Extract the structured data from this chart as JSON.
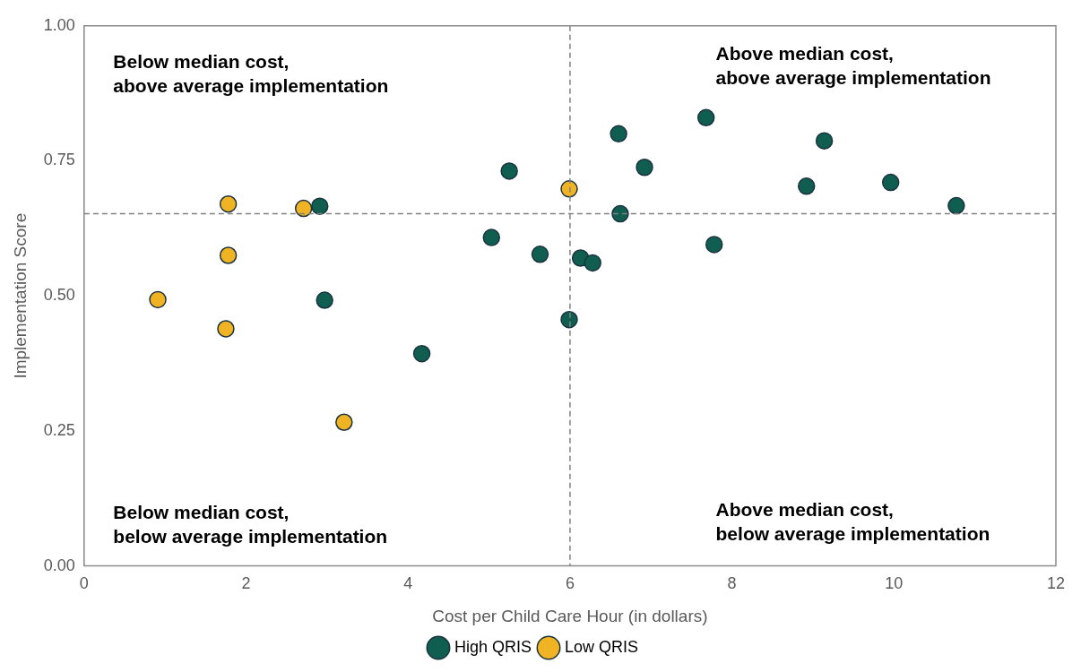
{
  "chart_data": {
    "type": "scatter",
    "xlabel": "Cost per Child Care Hour (in dollars)",
    "ylabel": "Implementation Score",
    "xlim": [
      0,
      12
    ],
    "xticks": [
      0,
      2,
      4,
      6,
      8,
      10,
      12
    ],
    "ylim": [
      0,
      1
    ],
    "yticks": [
      {
        "value": 0,
        "label": "0.00"
      },
      0.25,
      {
        "value": 0.5,
        "label": "0.50"
      },
      0.75,
      {
        "value": 1,
        "label": "1.00"
      }
    ],
    "grid": false,
    "legend": "bottom",
    "marker": "circle",
    "series": [
      {
        "name": "High QRIS",
        "color": "#0f5e4f",
        "x": [
          2.91,
          2.97,
          4.17,
          5.03,
          5.25,
          5.63,
          5.99,
          6.13,
          6.28,
          6.6,
          6.62,
          6.92,
          7.68,
          7.78,
          8.92,
          9.14,
          9.96,
          10.77
        ],
        "values": [
          0.666,
          0.492,
          0.393,
          0.608,
          0.731,
          0.577,
          0.456,
          0.57,
          0.561,
          0.8,
          0.652,
          0.738,
          0.83,
          0.595,
          0.703,
          0.787,
          0.71,
          0.667
        ]
      },
      {
        "name": "Low QRIS",
        "color": "#f0b323",
        "x": [
          0.91,
          1.75,
          1.78,
          1.78,
          2.71,
          3.21,
          5.99
        ],
        "values": [
          0.493,
          0.439,
          0.67,
          0.575,
          0.662,
          0.266,
          0.698
        ]
      }
    ],
    "ref_lines": [
      {
        "axis": "x",
        "value": 6,
        "line_style": "dashed",
        "color": "#808080"
      },
      {
        "axis": "y",
        "value": 0.652,
        "line_style": "dashed",
        "color": "#808080"
      }
    ],
    "annotations": [
      "Below median cost,\nabove average implementation",
      "Above median cost,\nabove average implementation",
      "Below median cost,\nbelow average implementation",
      "Above median cost,\nbelow average implementation"
    ]
  }
}
